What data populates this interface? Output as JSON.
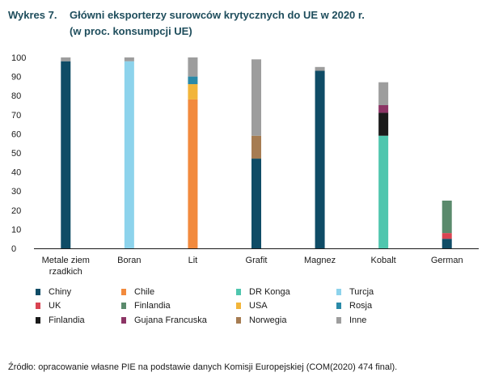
{
  "header": {
    "label": "Wykres 7.",
    "title": "Główni eksporterzy surowców krytycznych do UE w 2020 r.",
    "subtitle": "(w proc. konsumpcji UE)"
  },
  "chart_data": {
    "type": "bar",
    "stacked": true,
    "title": "Główni eksporterzy surowców krytycznych do UE w 2020 r.",
    "subtitle": "(w proc. konsumpcji UE)",
    "xlabel": "",
    "ylabel": "",
    "ylim": [
      0,
      100
    ],
    "yticks": [
      0,
      10,
      20,
      30,
      40,
      50,
      60,
      70,
      80,
      90,
      100
    ],
    "categories": [
      {
        "lines": [
          "Metale ziem",
          "rzadkich"
        ]
      },
      {
        "lines": [
          "Boran"
        ]
      },
      {
        "lines": [
          "Lit"
        ]
      },
      {
        "lines": [
          "Grafit"
        ]
      },
      {
        "lines": [
          "Magnez"
        ]
      },
      {
        "lines": [
          "Kobalt"
        ]
      },
      {
        "lines": [
          "German"
        ]
      }
    ],
    "series": [
      {
        "name": "Chiny",
        "color": "#0f4c66",
        "values": [
          98,
          0,
          0,
          47,
          93,
          0,
          5
        ]
      },
      {
        "name": "Turcja",
        "color": "#8dd3ec",
        "values": [
          0,
          98,
          0,
          0,
          0,
          0,
          0
        ]
      },
      {
        "name": "Chile",
        "color": "#f28a3d",
        "values": [
          0,
          0,
          78,
          0,
          0,
          0,
          0
        ]
      },
      {
        "name": "USA",
        "color": "#f2b53a",
        "values": [
          0,
          0,
          8,
          0,
          0,
          0,
          0
        ]
      },
      {
        "name": "Rosja",
        "color": "#2a8aa8",
        "values": [
          0,
          0,
          4,
          0,
          0,
          0,
          0
        ]
      },
      {
        "name": "Norwegia",
        "color": "#a67c52",
        "values": [
          0,
          0,
          0,
          12,
          0,
          0,
          0
        ]
      },
      {
        "name": "DR Konga",
        "color": "#4fc6ae",
        "values": [
          0,
          0,
          0,
          0,
          0,
          59,
          0
        ]
      },
      {
        "name": "Finlandia",
        "color": "#1a1a1a",
        "values": [
          0,
          0,
          0,
          0,
          0,
          12,
          0
        ]
      },
      {
        "name": "Gujana Francuska",
        "color": "#8c3465",
        "values": [
          0,
          0,
          0,
          0,
          0,
          4,
          0
        ]
      },
      {
        "name": "UK",
        "color": "#d94452",
        "values": [
          0,
          0,
          0,
          0,
          0,
          0,
          3
        ]
      },
      {
        "name": "Finlandia",
        "color": "#5a8a6c",
        "values": [
          0,
          0,
          0,
          0,
          0,
          0,
          17
        ]
      },
      {
        "name": "Inne",
        "color": "#9d9d9d",
        "values": [
          2,
          2,
          10,
          40,
          2,
          12,
          0
        ]
      }
    ],
    "legend": {
      "position": "bottom",
      "rows": [
        [
          {
            "name": "Chiny",
            "color": "#0f4c66"
          },
          {
            "name": "Chile",
            "color": "#f28a3d"
          },
          {
            "name": "DR Konga",
            "color": "#4fc6ae"
          },
          {
            "name": "Turcja",
            "color": "#8dd3ec"
          }
        ],
        [
          {
            "name": "UK",
            "color": "#d94452"
          },
          {
            "name": "Finlandia",
            "color": "#5a8a6c"
          },
          {
            "name": "USA",
            "color": "#f2b53a"
          },
          {
            "name": "Rosja",
            "color": "#2a8aa8"
          }
        ],
        [
          {
            "name": "Finlandia",
            "color": "#1a1a1a"
          },
          {
            "name": "Gujana Francuska",
            "color": "#8c3465"
          },
          {
            "name": "Norwegia",
            "color": "#a67c52"
          },
          {
            "name": "Inne",
            "color": "#9d9d9d"
          }
        ]
      ]
    }
  },
  "source": "Źródło: opracowanie własne PIE na podstawie danych Komisji Europejskiej (COM(2020) 474 final)."
}
